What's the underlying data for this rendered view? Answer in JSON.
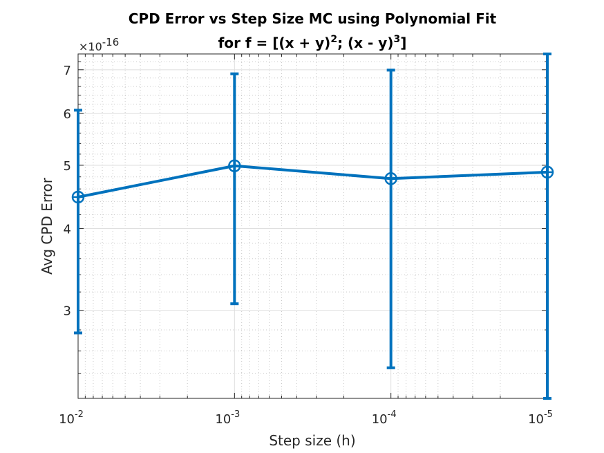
{
  "chart_data": {
    "type": "line",
    "title_line1": "CPD Error vs Step Size MC using Polynomial Fit",
    "title_line2_prefix": "for f = [(x + y)",
    "title_line2_sup1": "2",
    "title_line2_mid": "; (x - y)",
    "title_line2_sup2": "3",
    "title_line2_suffix": "]",
    "xlabel": "Step size (h)",
    "ylabel": "Avg CPD Error",
    "y_multiplier_prefix": "×10",
    "y_multiplier_exp": "-16",
    "x_scale": "log",
    "x_reversed": true,
    "y_scale": "log",
    "xlim": [
      0.01,
      1e-05
    ],
    "ylim": [
      2.2,
      7.4
    ],
    "grid": true,
    "minor_grid": true,
    "x_ticks": [
      {
        "value": 0.01,
        "base": "10",
        "exp": "-2"
      },
      {
        "value": 0.001,
        "base": "10",
        "exp": "-3"
      },
      {
        "value": 0.0001,
        "base": "10",
        "exp": "-4"
      },
      {
        "value": 1e-05,
        "base": "10",
        "exp": "-5"
      }
    ],
    "y_ticks": [
      {
        "value": 3,
        "label": "3"
      },
      {
        "value": 4,
        "label": "4"
      },
      {
        "value": 5,
        "label": "5"
      },
      {
        "value": 6,
        "label": "6"
      },
      {
        "value": 7,
        "label": "7"
      }
    ],
    "series": [
      {
        "color": "#0072BD",
        "marker": "circle-plus",
        "points": [
          {
            "x": 0.01,
            "y": 4.47,
            "err_low": 2.77,
            "err_high": 6.07
          },
          {
            "x": 0.001,
            "y": 4.99,
            "err_low": 3.07,
            "err_high": 6.9
          },
          {
            "x": 0.0001,
            "y": 4.77,
            "err_low": 2.45,
            "err_high": 6.99
          },
          {
            "x": 1e-05,
            "y": 4.88,
            "err_low": 2.2,
            "err_high": 7.4
          }
        ]
      }
    ]
  }
}
